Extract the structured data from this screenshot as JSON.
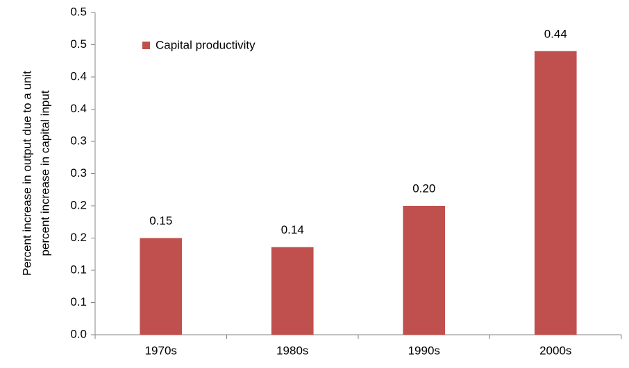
{
  "chart_data": {
    "type": "bar",
    "ylabel": [
      "Percent increase in output due to a unit",
      "percent increase in capital input"
    ],
    "categories": [
      "1970s",
      "1980s",
      "1990s",
      "2000s"
    ],
    "series": [
      {
        "name": "Capital productivity",
        "color": "#c0504d",
        "values": [
          0.15,
          0.136,
          0.2,
          0.44
        ],
        "value_labels": [
          "0.15",
          "0.14",
          "0.20",
          "0.44"
        ]
      }
    ],
    "ylim": [
      0,
      0.5
    ],
    "yticks": [
      {
        "value": 0,
        "label": "0.0"
      },
      {
        "value": 0.05,
        "label": "0.1"
      },
      0.1,
      {
        "value": 0.15,
        "label": "0.2"
      },
      0.2,
      {
        "value": 0.25,
        "label": "0.3"
      },
      0.3,
      {
        "value": 0.35,
        "label": "0.4"
      },
      0.4,
      {
        "value": 0.45,
        "label": "0.5"
      },
      0.5
    ],
    "grid": false,
    "legend": "upper left"
  }
}
